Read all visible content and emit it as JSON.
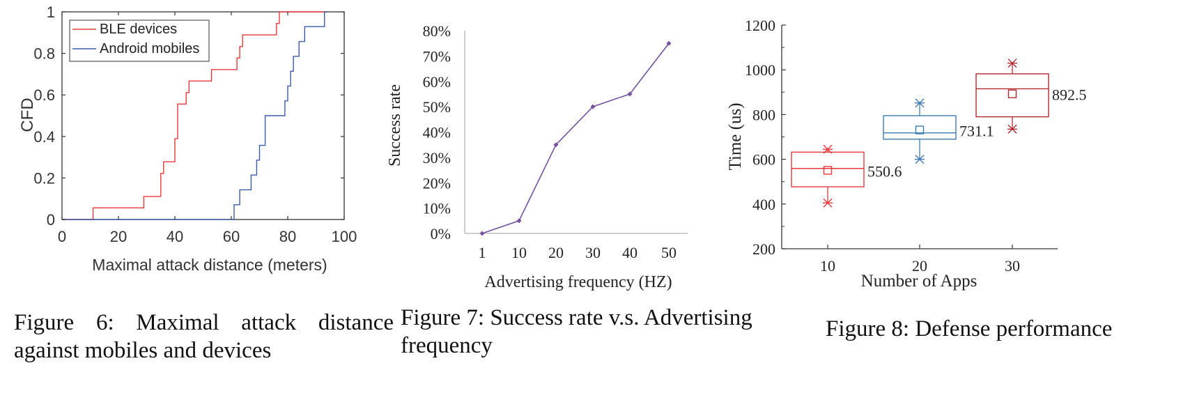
{
  "figures": {
    "fig6": {
      "caption_line1": "Figure 6:   Maximal attack distance",
      "caption_line2": "against mobiles and devices"
    },
    "fig7": {
      "caption_line1": "Figure 7: Success rate v.s. Advertising",
      "caption_line2": "frequency"
    },
    "fig8": {
      "caption": "Figure 8: Defense performance"
    }
  },
  "chart_data": [
    {
      "type": "line",
      "subtype": "step-cdf",
      "xlabel": "Maximal attack distance (meters)",
      "ylabel": "CFD",
      "xlim": [
        0,
        100
      ],
      "ylim": [
        0,
        1
      ],
      "xticks": [
        "0",
        "20",
        "40",
        "60",
        "80",
        "100"
      ],
      "yticks": [
        "0",
        "0.2",
        "0.4",
        "0.6",
        "0.8",
        "1"
      ],
      "legend_position": "top-left",
      "grid": false,
      "series": [
        {
          "name": "BLE devices",
          "color": "#e8383d",
          "x": [
            0,
            11,
            11,
            29,
            29,
            35,
            35,
            36,
            36,
            37,
            37,
            40,
            40,
            41,
            41,
            44,
            44,
            45,
            45,
            46,
            46,
            53,
            53,
            62,
            62,
            63,
            63,
            64,
            64,
            76,
            76,
            77,
            77,
            94
          ],
          "y": [
            0,
            0,
            0.056,
            0.056,
            0.111,
            0.111,
            0.222,
            0.222,
            0.278,
            0.278,
            0.278,
            0.278,
            0.389,
            0.389,
            0.556,
            0.556,
            0.611,
            0.611,
            0.667,
            0.667,
            0.667,
            0.667,
            0.722,
            0.722,
            0.778,
            0.778,
            0.833,
            0.833,
            0.889,
            0.889,
            0.944,
            0.944,
            1.0,
            1.0
          ]
        },
        {
          "name": "Android mobiles",
          "color": "#3d5aa8",
          "x": [
            0,
            61,
            61,
            63,
            63,
            67,
            67,
            69,
            69,
            70,
            70,
            72,
            72,
            73,
            73,
            79,
            79,
            80,
            80,
            81,
            81,
            82,
            82,
            84,
            84,
            85,
            85,
            86,
            86,
            89,
            89,
            93,
            93,
            94
          ],
          "y": [
            0,
            0,
            0.071,
            0.071,
            0.143,
            0.143,
            0.214,
            0.214,
            0.286,
            0.286,
            0.357,
            0.357,
            0.5,
            0.5,
            0.5,
            0.5,
            0.571,
            0.571,
            0.643,
            0.643,
            0.714,
            0.714,
            0.786,
            0.786,
            0.857,
            0.857,
            0.857,
            0.857,
            0.929,
            0.929,
            0.929,
            0.929,
            1.0,
            1.0
          ]
        }
      ]
    },
    {
      "type": "line",
      "xlabel": "Advertising frequency (HZ)",
      "ylabel": "Success rate",
      "categories": [
        "1",
        "10",
        "20",
        "30",
        "40",
        "50"
      ],
      "yticks": [
        "0%",
        "10%",
        "20%",
        "30%",
        "40%",
        "50%",
        "60%",
        "70%",
        "80%"
      ],
      "ylim": [
        0,
        80
      ],
      "grid": false,
      "series": [
        {
          "color": "#7552a0",
          "marker": "diamond",
          "values": [
            0,
            5,
            35,
            50,
            55,
            75
          ]
        }
      ]
    },
    {
      "type": "box",
      "xlabel": "Number of Apps",
      "ylabel": "Time (us)",
      "ylim": [
        200,
        1200
      ],
      "yticks": [
        "200",
        "400",
        "600",
        "800",
        "1000",
        "1200"
      ],
      "categories": [
        "10",
        "20",
        "30"
      ],
      "grid": false,
      "boxes": [
        {
          "category": "10",
          "color": "#e8383d",
          "q1": 477,
          "median": 559,
          "q3": 632,
          "mean": 550.6,
          "min": 405,
          "max": 645,
          "mean_label": "550.6"
        },
        {
          "category": "20",
          "color": "#3f7ab4",
          "q1": 690,
          "median": 718,
          "q3": 795,
          "mean": 731.1,
          "min": 600,
          "max": 852,
          "mean_label": "731.1"
        },
        {
          "category": "30",
          "color": "#b02a2e",
          "q1": 790,
          "median": 915,
          "q3": 982,
          "mean": 892.5,
          "min": 735,
          "max": 1030,
          "mean_label": "892.5"
        }
      ]
    }
  ]
}
